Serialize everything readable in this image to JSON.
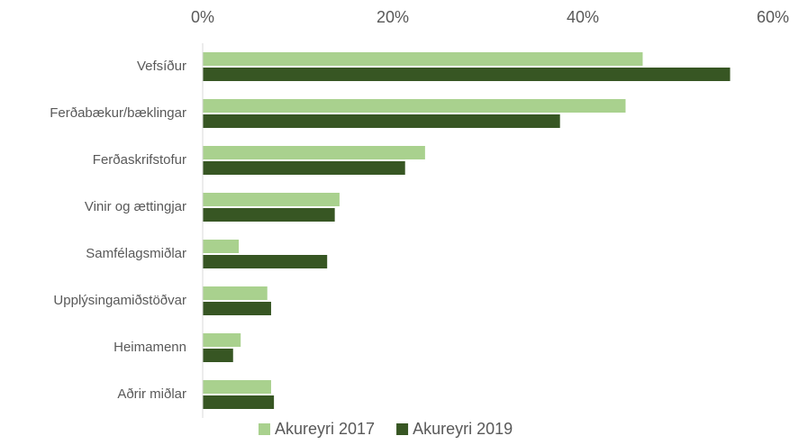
{
  "chart_data": {
    "type": "hbar",
    "categories": [
      "Vefsíður",
      "Ferðabækur/bæklingar",
      "Ferðaskrifstofur",
      "Vinir og ættingjar",
      "Samfélagsmiðlar",
      "Upplýsingamiðstöðvar",
      "Heimamenn",
      "Aðrir miðlar"
    ],
    "series": [
      {
        "name": "Akureyri 2017",
        "color": "#a9d18e",
        "values": [
          46.3,
          44.5,
          23.4,
          14.4,
          3.8,
          6.8,
          4.0,
          7.2
        ]
      },
      {
        "name": "Akureyri 2019",
        "color": "#375623",
        "values": [
          55.5,
          37.6,
          21.3,
          13.9,
          13.1,
          7.2,
          3.2,
          7.5
        ]
      }
    ],
    "xlim": [
      0,
      60
    ],
    "xticks": [
      {
        "value": 0,
        "label": "0%"
      },
      {
        "value": 20,
        "label": "20%"
      },
      {
        "value": 40,
        "label": "40%"
      },
      {
        "value": 60,
        "label": "60%"
      }
    ],
    "grid": false,
    "legend": "bottom"
  }
}
